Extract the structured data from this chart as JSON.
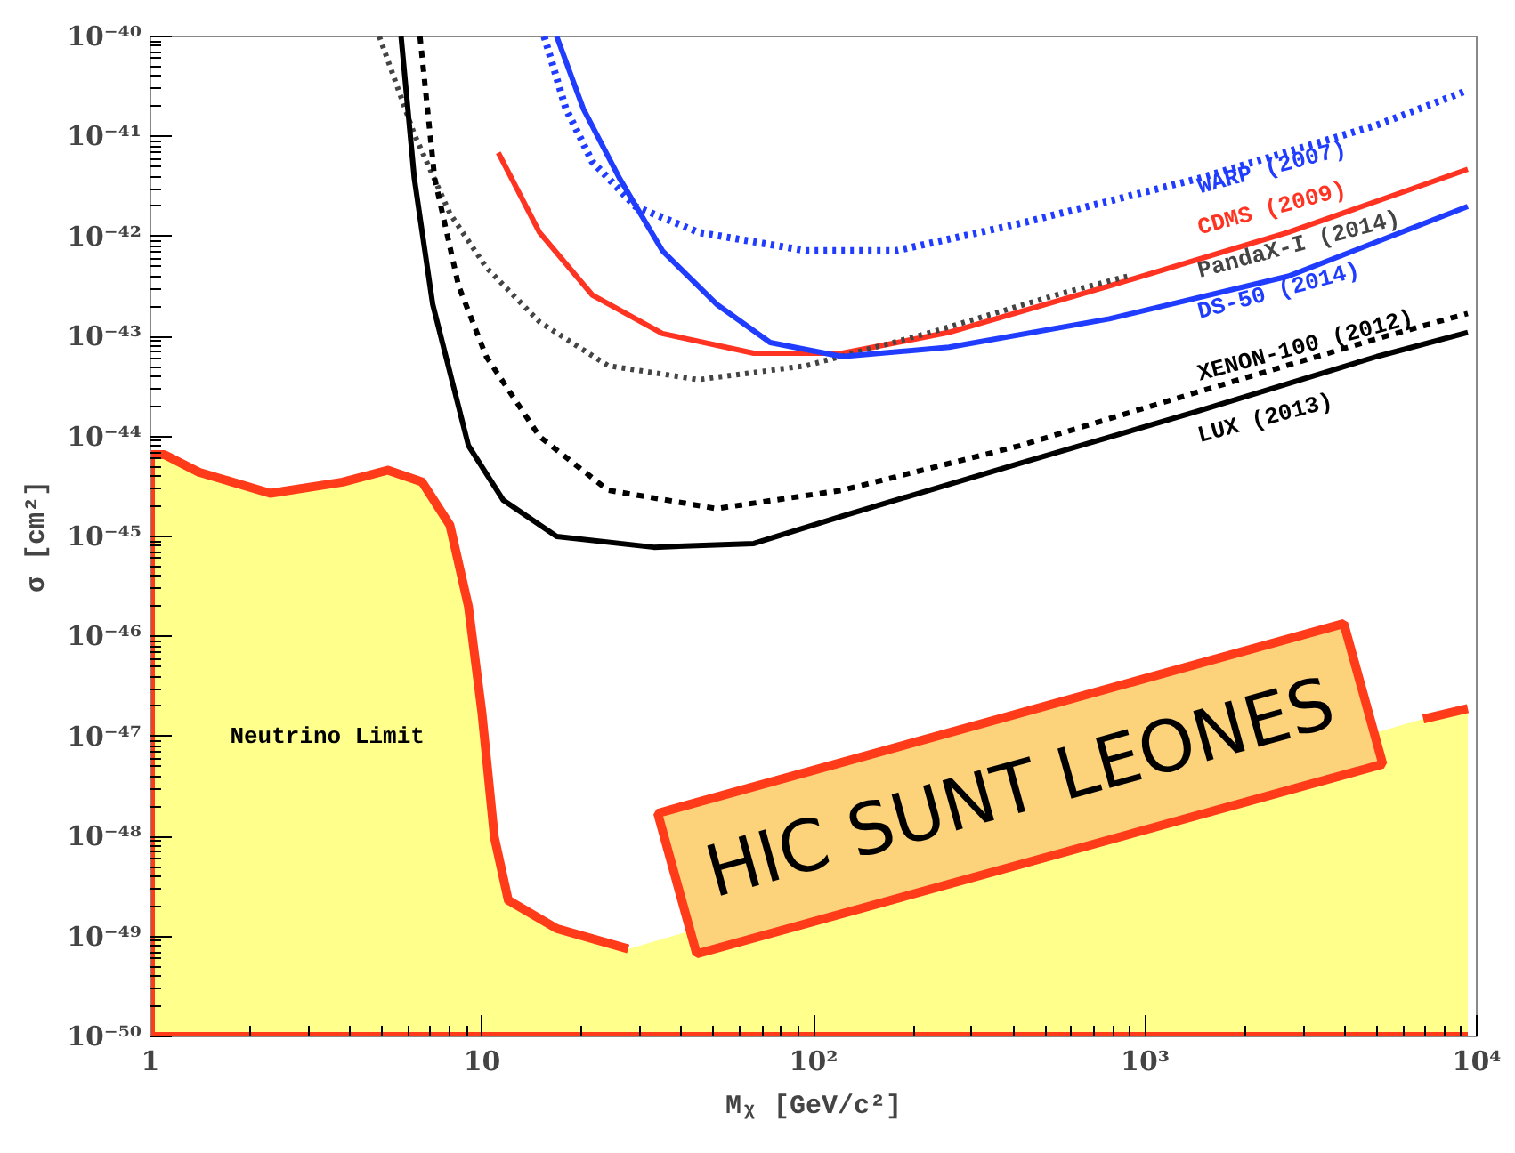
{
  "chart_data": {
    "type": "line",
    "xlabel": "Mᵪ [GeV/c²]",
    "ylabel": "σ [cm²]",
    "log": "xy",
    "grid": false,
    "legend": false,
    "marker": "none",
    "xlim": [
      1,
      10000
    ],
    "ylim": [
      1e-50,
      1e-40
    ],
    "xticks": [
      1,
      10,
      {
        "value": 100,
        "label": "10²"
      },
      {
        "value": 1000,
        "label": "10³"
      },
      {
        "value": 10000,
        "label": "10⁴"
      }
    ],
    "yticks": [
      {
        "value": 1e-50,
        "label": "10⁻⁵⁰"
      },
      {
        "value": 1e-49,
        "label": "10⁻⁴⁹"
      },
      {
        "value": 1e-48,
        "label": "10⁻⁴⁸"
      },
      {
        "value": 1e-47,
        "label": "10⁻⁴⁷"
      },
      {
        "value": 1e-46,
        "label": "10⁻⁴⁶"
      },
      {
        "value": 1e-45,
        "label": "10⁻⁴⁵"
      },
      {
        "value": 1e-44,
        "label": "10⁻⁴⁴"
      },
      {
        "value": 1e-43,
        "label": "10⁻⁴³"
      },
      {
        "value": 1e-42,
        "label": "10⁻⁴²"
      },
      {
        "value": 1e-41,
        "label": "10⁻⁴¹"
      },
      {
        "value": 1e-40,
        "label": "10⁻⁴⁰"
      }
    ],
    "series": [
      {
        "type": "area",
        "color": "#ffff8c",
        "x": [
          1,
          1.1,
          1.4,
          2.3,
          3.8,
          5.2,
          6.6,
          8.0,
          9.1,
          10,
          10.9,
          12,
          16.8,
          27.6,
          100,
          6900,
          9400
        ],
        "values": [
          6.6e-45,
          6.6e-45,
          4.4e-45,
          2.7e-45,
          3.5e-45,
          4.6e-45,
          3.5e-45,
          1.3e-45,
          2e-46,
          1.7e-47,
          9.8e-49,
          2.3e-49,
          1.2e-49,
          7.5e-50,
          null,
          1.5e-47,
          1.9e-47
        ]
      },
      {
        "name": "WARP (2007)",
        "color": "#1f3cff",
        "line_style": "dotted",
        "x": [
          15.4,
          17.9,
          21.5,
          29,
          45,
          95,
          177,
          420,
          1450,
          5000,
          9400
        ],
        "values": [
          1e-40,
          1.9e-41,
          5.6e-42,
          2e-42,
          1.1e-42,
          7.2e-43,
          7.2e-43,
          1.35e-42,
          3.8e-42,
          1.3e-41,
          2.9e-41
        ]
      },
      {
        "name": "CDMS (2009)",
        "color": "#ff3322",
        "line_style": "solid",
        "x": [
          11.2,
          14.9,
          21.5,
          35,
          66,
          122,
          256,
          780,
          2700,
          9400
        ],
        "values": [
          6.9e-42,
          1.1e-42,
          2.6e-43,
          1.07e-43,
          6.8e-44,
          6.8e-44,
          1.1e-43,
          3.2e-43,
          1.1e-42,
          4.7e-42
        ]
      },
      {
        "name": "PandaX-I (2014)",
        "color": "#444444",
        "line_style": "dotted",
        "x": [
          4.9,
          6.25,
          8.0,
          10.3,
          14.9,
          24,
          45,
          95,
          226,
          538,
          883
        ],
        "values": [
          1e-40,
          1.05e-41,
          1.7e-42,
          4.9e-43,
          1.4e-43,
          5.1e-44,
          3.7e-44,
          5.1e-44,
          1.1e-43,
          2.6e-43,
          4e-43
        ]
      },
      {
        "name": "DS-50 (2014)",
        "color": "#1f3cff",
        "line_style": "solid",
        "x": [
          16.8,
          20.2,
          26,
          35,
          51,
          74,
          122,
          256,
          780,
          2700,
          9400
        ],
        "values": [
          1e-40,
          1.9e-41,
          3.8e-42,
          7.2e-43,
          2.1e-43,
          8.7e-44,
          6.3e-44,
          7.8e-44,
          1.5e-43,
          4e-43,
          2e-42
        ]
      },
      {
        "name": "XENON-100 (2012)",
        "color": "#000000",
        "line_style": "dashed",
        "x": [
          6.5,
          7.2,
          8.5,
          10.3,
          14.9,
          24,
          51,
          122,
          420,
          1450,
          5000,
          9400
        ],
        "values": [
          1e-40,
          3.8e-42,
          3.2e-43,
          6.3e-44,
          1e-44,
          2.9e-45,
          1.9e-45,
          2.9e-45,
          8.1e-45,
          2.8e-44,
          9.5e-44,
          1.7e-43
        ]
      },
      {
        "name": "LUX (2013)",
        "color": "#000000",
        "line_style": "solid",
        "x": [
          5.7,
          6.25,
          7.1,
          9.1,
          11.6,
          16.8,
          33,
          66,
          122,
          420,
          1450,
          5000,
          9400
        ],
        "values": [
          1e-40,
          3.8e-42,
          2.1e-43,
          8.1e-45,
          2.3e-45,
          1e-45,
          7.8e-46,
          8.5e-46,
          1.6e-45,
          5.4e-45,
          1.8e-44,
          6.3e-44,
          1.1e-43
        ]
      }
    ],
    "annotations": [
      "Neutrino Limit",
      "HIC SUNT LEONES"
    ]
  }
}
